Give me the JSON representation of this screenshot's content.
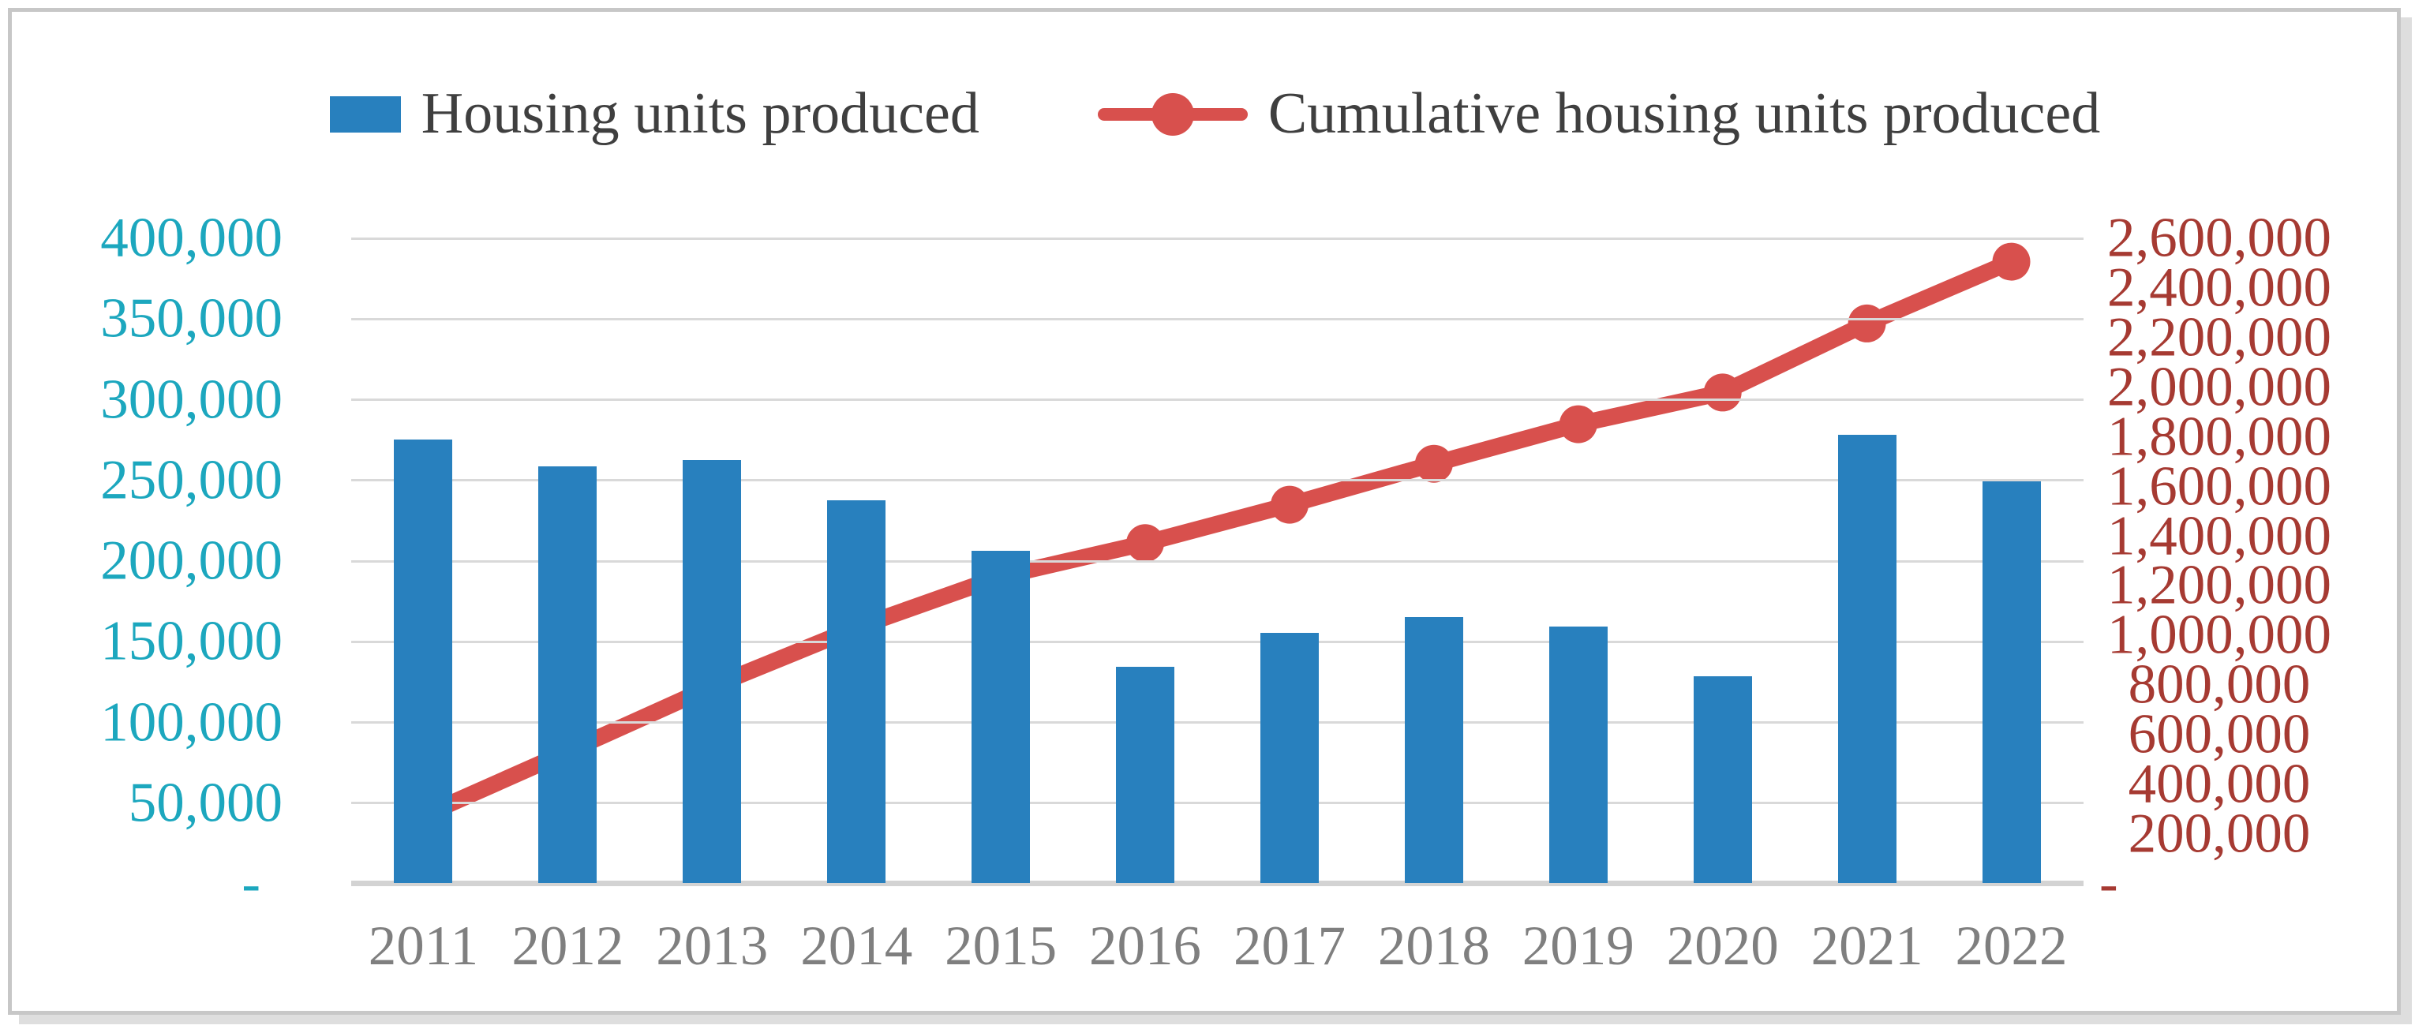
{
  "figure": {
    "legend": [
      {
        "label": "Housing units produced",
        "type": "bar"
      },
      {
        "label": "Cumulative housing units produced",
        "type": "line"
      }
    ]
  },
  "colors": {
    "bar": "#2880be",
    "line": "#d8504d",
    "left_axis_text": "#1ca7be",
    "right_axis_text": "#a63a32",
    "x_axis_text": "#7f7f7f",
    "legend_text": "#3f3f3f",
    "gridline": "#d9d9d9"
  },
  "chart_data": {
    "type": "bar+line",
    "categories": [
      "2011",
      "2012",
      "2013",
      "2014",
      "2015",
      "2016",
      "2017",
      "2018",
      "2019",
      "2020",
      "2021",
      "2022"
    ],
    "series": [
      {
        "name": "Housing units produced",
        "type": "bar",
        "axis": "left",
        "values": [
          275000,
          258000,
          262000,
          237000,
          206000,
          134000,
          155000,
          165000,
          159000,
          128000,
          278000,
          249000
        ]
      },
      {
        "name": "Cumulative housing units produced",
        "type": "line",
        "axis": "right",
        "values": [
          275000,
          533000,
          795000,
          1032000,
          1238000,
          1372000,
          1527000,
          1692000,
          1851000,
          1979000,
          2257000,
          2506000
        ]
      }
    ],
    "left_axis": {
      "min": 0,
      "max": 400000,
      "step": 50000,
      "tick_labels": [
        "400,000",
        "350,000",
        "300,000",
        "250,000",
        "200,000",
        "150,000",
        "100,000",
        "50,000",
        "-"
      ]
    },
    "right_axis": {
      "min": 0,
      "max": 2600000,
      "step": 200000,
      "tick_labels": [
        "2,600,000",
        "2,400,000",
        "2,200,000",
        "2,000,000",
        "1,800,000",
        "1,600,000",
        "1,400,000",
        "1,200,000",
        "1,000,000",
        "800,000",
        "600,000",
        "400,000",
        "200,000",
        "-"
      ]
    },
    "grid": true,
    "legend_position": "top"
  }
}
